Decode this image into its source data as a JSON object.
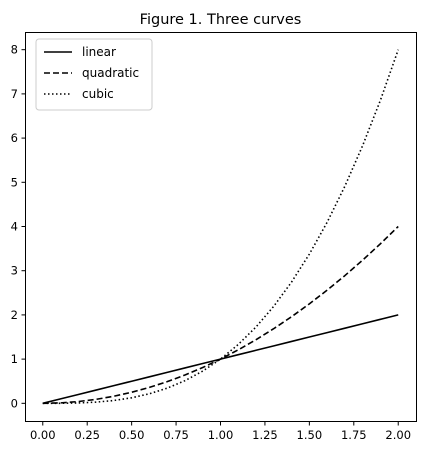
{
  "chart_data": {
    "type": "line",
    "title": "Figure 1. Three curves",
    "xlabel": "",
    "ylabel": "",
    "xlim": [
      -0.1,
      2.1
    ],
    "ylim": [
      -0.4,
      8.4
    ],
    "xticks": [
      0.0,
      0.25,
      0.5,
      0.75,
      1.0,
      1.25,
      1.5,
      1.75,
      2.0
    ],
    "xtick_labels": [
      "0.00",
      "0.25",
      "0.50",
      "0.75",
      "1.00",
      "1.25",
      "1.50",
      "1.75",
      "2.00"
    ],
    "yticks": [
      0,
      1,
      2,
      3,
      4,
      5,
      6,
      7,
      8
    ],
    "ytick_labels": [
      "0",
      "1",
      "2",
      "3",
      "4",
      "5",
      "6",
      "7",
      "8"
    ],
    "grid": false,
    "legend_position": "top-left",
    "x": [
      0.0,
      0.1,
      0.2,
      0.3,
      0.4,
      0.5,
      0.6,
      0.7,
      0.8,
      0.9,
      1.0,
      1.1,
      1.2,
      1.3,
      1.4,
      1.5,
      1.6,
      1.7,
      1.8,
      1.9,
      2.0
    ],
    "series": [
      {
        "name": "linear",
        "line_style": "solid",
        "color": "#000000",
        "values": [
          0.0,
          0.1,
          0.2,
          0.3,
          0.4,
          0.5,
          0.6,
          0.7,
          0.8,
          0.9,
          1.0,
          1.1,
          1.2,
          1.3,
          1.4,
          1.5,
          1.6,
          1.7,
          1.8,
          1.9,
          2.0
        ]
      },
      {
        "name": "quadratic",
        "line_style": "dashed",
        "color": "#000000",
        "values": [
          0.0,
          0.01,
          0.04,
          0.09,
          0.16,
          0.25,
          0.36,
          0.49,
          0.64,
          0.81,
          1.0,
          1.21,
          1.44,
          1.69,
          1.96,
          2.25,
          2.56,
          2.89,
          3.24,
          3.61,
          4.0
        ]
      },
      {
        "name": "cubic",
        "line_style": "dotted",
        "color": "#000000",
        "values": [
          0.0,
          0.001,
          0.008,
          0.027,
          0.064,
          0.125,
          0.216,
          0.343,
          0.512,
          0.729,
          1.0,
          1.331,
          1.728,
          2.197,
          2.744,
          3.375,
          4.096,
          4.913,
          5.832,
          6.859,
          8.0
        ]
      }
    ]
  }
}
